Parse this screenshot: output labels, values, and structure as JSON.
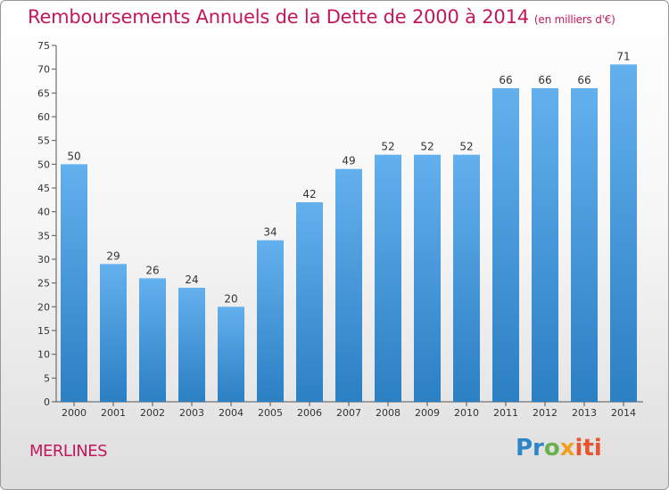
{
  "header": {
    "title": "Remboursements Annuels de la Dette de 2000 à 2014",
    "unit": "(en milliers d'€)"
  },
  "footer": {
    "place": "MERLINES",
    "logo_parts": [
      "Pr",
      "o",
      "x",
      "iti"
    ]
  },
  "colors": {
    "title": "#c2185b",
    "bar_top": "#63b0ee",
    "bar_bottom": "#2b7fc3",
    "axis": "#555555"
  },
  "chart_data": {
    "type": "bar",
    "title": "Remboursements Annuels de la Dette de 2000 à 2014",
    "ylabel": "en milliers d'€",
    "xlabel": "",
    "categories": [
      "2000",
      "2001",
      "2002",
      "2003",
      "2004",
      "2005",
      "2006",
      "2007",
      "2008",
      "2009",
      "2010",
      "2011",
      "2012",
      "2013",
      "2014"
    ],
    "values": [
      50,
      29,
      26,
      24,
      20,
      34,
      42,
      49,
      52,
      52,
      52,
      66,
      66,
      66,
      71
    ],
    "ylim": [
      0,
      75
    ],
    "yticks": [
      0,
      5,
      10,
      15,
      20,
      25,
      30,
      35,
      40,
      45,
      50,
      55,
      60,
      65,
      70,
      75
    ],
    "grid": false
  }
}
